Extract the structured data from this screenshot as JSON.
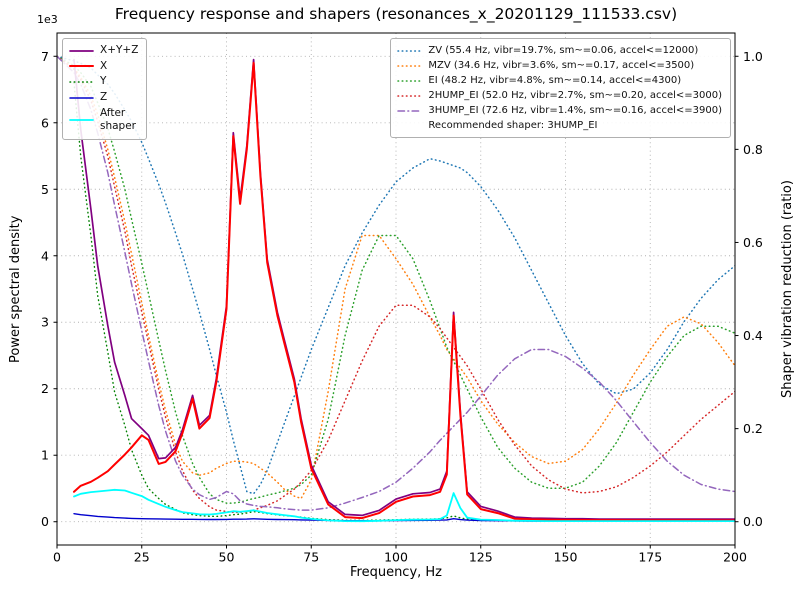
{
  "chart_data": {
    "type": "line",
    "title": "Frequency response and shapers (resonances_x_20201129_111533.csv)",
    "xlabel": "Frequency, Hz",
    "ylabel_left": "Power spectral density",
    "ylabel_right": "Shaper vibration reduction (ratio)",
    "y_left_offset": "1e3",
    "recommended_shaper": "3HUMP_EI",
    "grid": true,
    "xlim": [
      0,
      200
    ],
    "ylim_left": [
      -350,
      7350
    ],
    "ylim_right": [
      -0.05,
      1.05
    ],
    "xticks": [
      0,
      25,
      50,
      75,
      100,
      125,
      150,
      175,
      200
    ],
    "yticks_left": [
      0,
      1,
      2,
      3,
      4,
      5,
      6,
      7
    ],
    "yticks_left_scale": 1000,
    "yticks_right": [
      "0.0",
      "0.2",
      "0.4",
      "0.6",
      "0.8",
      "1.0"
    ],
    "x": [
      0,
      5,
      7,
      10,
      12,
      15,
      17,
      20,
      22,
      25,
      27,
      30,
      32,
      35,
      37,
      40,
      42,
      45,
      47,
      50,
      52,
      54,
      56,
      58,
      60,
      62,
      65,
      67,
      70,
      72,
      75,
      80,
      85,
      90,
      95,
      100,
      105,
      110,
      113,
      115,
      117,
      119,
      121,
      125,
      130,
      135,
      140,
      145,
      150,
      155,
      160,
      165,
      170,
      175,
      180,
      185,
      190,
      195,
      200
    ],
    "series": [
      {
        "key": "shaper-zv",
        "label": "ZV (55.4 Hz, vibr=19.7%, sm~=0.06, accel<=12000)",
        "axis": "right",
        "color": "#1f77b4",
        "style": "dotted",
        "width": 1.5,
        "values": [
          1.0,
          0.99,
          0.985,
          0.975,
          0.96,
          0.94,
          0.92,
          0.885,
          0.86,
          0.815,
          0.78,
          0.725,
          0.685,
          0.62,
          0.575,
          0.5,
          0.45,
          0.37,
          0.315,
          0.235,
          0.175,
          0.12,
          0.065,
          0.06,
          0.08,
          0.11,
          0.17,
          0.21,
          0.27,
          0.31,
          0.37,
          0.46,
          0.55,
          0.62,
          0.68,
          0.73,
          0.76,
          0.78,
          0.775,
          0.77,
          0.765,
          0.76,
          0.75,
          0.72,
          0.67,
          0.61,
          0.54,
          0.47,
          0.4,
          0.34,
          0.295,
          0.275,
          0.285,
          0.32,
          0.37,
          0.43,
          0.48,
          0.52,
          0.55
        ]
      },
      {
        "key": "shaper-mzv",
        "label": "MZV (34.6 Hz, vibr=3.6%, sm~=0.17, accel<=3500)",
        "axis": "right",
        "color": "#ff7f0e",
        "style": "dotted",
        "width": 1.5,
        "values": [
          1.0,
          0.975,
          0.955,
          0.915,
          0.875,
          0.8,
          0.74,
          0.645,
          0.575,
          0.47,
          0.4,
          0.3,
          0.24,
          0.165,
          0.13,
          0.105,
          0.1,
          0.105,
          0.115,
          0.125,
          0.13,
          0.13,
          0.128,
          0.125,
          0.115,
          0.105,
          0.085,
          0.07,
          0.055,
          0.05,
          0.09,
          0.28,
          0.5,
          0.615,
          0.615,
          0.565,
          0.51,
          0.44,
          0.4,
          0.37,
          0.35,
          0.33,
          0.31,
          0.26,
          0.21,
          0.17,
          0.14,
          0.125,
          0.13,
          0.155,
          0.2,
          0.255,
          0.315,
          0.37,
          0.42,
          0.44,
          0.425,
          0.385,
          0.335
        ]
      },
      {
        "key": "shaper-ei",
        "label": "EI (48.2 Hz, vibr=4.8%, sm~=0.14, accel<=4300)",
        "axis": "right",
        "color": "#2ca02c",
        "style": "dotted",
        "width": 1.5,
        "values": [
          1.0,
          0.98,
          0.965,
          0.935,
          0.9,
          0.845,
          0.795,
          0.715,
          0.65,
          0.555,
          0.49,
          0.39,
          0.325,
          0.235,
          0.185,
          0.125,
          0.095,
          0.06,
          0.048,
          0.04,
          0.04,
          0.042,
          0.046,
          0.05,
          0.053,
          0.057,
          0.062,
          0.066,
          0.072,
          0.08,
          0.1,
          0.22,
          0.4,
          0.54,
          0.615,
          0.615,
          0.565,
          0.475,
          0.415,
          0.375,
          0.345,
          0.315,
          0.285,
          0.225,
          0.16,
          0.115,
          0.085,
          0.072,
          0.072,
          0.085,
          0.12,
          0.17,
          0.235,
          0.3,
          0.355,
          0.4,
          0.42,
          0.42,
          0.405
        ]
      },
      {
        "key": "shaper-2hump-ei",
        "label": "2HUMP_EI (52.0 Hz, vibr=2.7%, sm~=0.20, accel<=3000)",
        "axis": "right",
        "color": "#d62728",
        "style": "dotted",
        "width": 1.5,
        "values": [
          1.0,
          0.972,
          0.95,
          0.905,
          0.86,
          0.785,
          0.72,
          0.625,
          0.55,
          0.45,
          0.385,
          0.285,
          0.225,
          0.15,
          0.11,
          0.068,
          0.05,
          0.032,
          0.025,
          0.022,
          0.02,
          0.02,
          0.022,
          0.025,
          0.03,
          0.035,
          0.045,
          0.055,
          0.07,
          0.085,
          0.11,
          0.175,
          0.26,
          0.345,
          0.42,
          0.465,
          0.465,
          0.44,
          0.415,
          0.395,
          0.375,
          0.355,
          0.335,
          0.285,
          0.22,
          0.165,
          0.12,
          0.09,
          0.07,
          0.062,
          0.065,
          0.075,
          0.095,
          0.12,
          0.15,
          0.185,
          0.22,
          0.25,
          0.28
        ]
      },
      {
        "key": "shaper-3hump-ei",
        "label": "3HUMP_EI (72.6 Hz, vibr=1.4%, sm~=0.16, accel<=3900)",
        "axis": "right",
        "color": "#9467bd",
        "style": "dashdot",
        "width": 1.5,
        "values": [
          1.0,
          0.965,
          0.94,
          0.885,
          0.835,
          0.75,
          0.68,
          0.58,
          0.51,
          0.41,
          0.345,
          0.25,
          0.195,
          0.13,
          0.1,
          0.07,
          0.058,
          0.048,
          0.052,
          0.065,
          0.06,
          0.045,
          0.038,
          0.035,
          0.033,
          0.032,
          0.03,
          0.028,
          0.026,
          0.025,
          0.025,
          0.03,
          0.04,
          0.052,
          0.065,
          0.085,
          0.115,
          0.15,
          0.175,
          0.19,
          0.205,
          0.22,
          0.235,
          0.27,
          0.315,
          0.35,
          0.37,
          0.37,
          0.355,
          0.33,
          0.3,
          0.26,
          0.215,
          0.17,
          0.13,
          0.1,
          0.08,
          0.07,
          0.065
        ]
      },
      {
        "key": "psd-xyz",
        "label": "X+Y+Z",
        "axis": "left",
        "color": "#800080",
        "style": "solid",
        "width": 1.7,
        "values": [
          null,
          6950,
          5900,
          4700,
          3850,
          2950,
          2400,
          1900,
          1550,
          1400,
          1300,
          950,
          960,
          1120,
          1380,
          1900,
          1450,
          1600,
          2150,
          3250,
          5850,
          4850,
          5650,
          6950,
          5250,
          3950,
          3150,
          2750,
          2150,
          1550,
          850,
          300,
          110,
          95,
          170,
          340,
          420,
          440,
          490,
          760,
          3150,
          1650,
          450,
          230,
          160,
          70,
          55,
          50,
          45,
          45,
          40,
          40,
          40,
          40,
          40,
          40,
          40,
          40,
          40
        ]
      },
      {
        "key": "psd-y",
        "label": "Y",
        "axis": "left",
        "color": "#008000",
        "style": "dotted",
        "width": 1.4,
        "values": [
          null,
          6600,
          5500,
          4300,
          3400,
          2550,
          1950,
          1450,
          1080,
          700,
          500,
          350,
          260,
          185,
          135,
          105,
          92,
          82,
          80,
          92,
          105,
          115,
          132,
          152,
          140,
          122,
          102,
          92,
          80,
          70,
          52,
          32,
          22,
          20,
          24,
          30,
          36,
          40,
          44,
          58,
          88,
          58,
          40,
          26,
          20,
          14,
          12,
          11,
          10,
          10,
          10,
          10,
          10,
          10,
          10,
          10,
          10,
          10,
          10
        ]
      },
      {
        "key": "psd-z",
        "label": "Z",
        "axis": "left",
        "color": "#0000cd",
        "style": "solid",
        "width": 1.4,
        "values": [
          null,
          120,
          105,
          90,
          80,
          70,
          62,
          55,
          50,
          46,
          44,
          42,
          40,
          38,
          37,
          36,
          35,
          34,
          34,
          35,
          38,
          38,
          40,
          44,
          40,
          37,
          34,
          32,
          30,
          28,
          25,
          20,
          16,
          15,
          16,
          18,
          20,
          22,
          24,
          28,
          45,
          32,
          24,
          18,
          15,
          12,
          11,
          10,
          10,
          10,
          10,
          10,
          10,
          10,
          10,
          10,
          10,
          10,
          10
        ]
      },
      {
        "key": "psd-x",
        "label": "X",
        "axis": "left",
        "color": "#ff0000",
        "style": "solid",
        "width": 2,
        "values": [
          null,
          450,
          540,
          600,
          660,
          760,
          860,
          1010,
          1120,
          1300,
          1230,
          870,
          900,
          1060,
          1330,
          1850,
          1400,
          1560,
          2100,
          3200,
          5800,
          4780,
          5600,
          6900,
          5200,
          3900,
          3100,
          2700,
          2100,
          1500,
          800,
          260,
          70,
          55,
          130,
          300,
          380,
          400,
          450,
          710,
          3100,
          1600,
          410,
          190,
          130,
          45,
          35,
          30,
          28,
          26,
          25,
          24,
          23,
          22,
          22,
          21,
          21,
          20,
          20
        ]
      },
      {
        "key": "psd-after-shaper",
        "label": "After\nshaper",
        "axis": "left",
        "color": "#00ffff",
        "style": "solid",
        "width": 1.8,
        "values": [
          null,
          380,
          420,
          445,
          455,
          470,
          480,
          470,
          435,
          385,
          330,
          265,
          225,
          175,
          145,
          125,
          112,
          108,
          118,
          140,
          158,
          150,
          160,
          172,
          152,
          132,
          112,
          100,
          82,
          62,
          42,
          20,
          10,
          8,
          14,
          24,
          30,
          34,
          40,
          92,
          430,
          205,
          60,
          32,
          26,
          16,
          12,
          10,
          10,
          10,
          10,
          10,
          10,
          10,
          10,
          10,
          10,
          10,
          10
        ]
      }
    ]
  },
  "legends": {
    "psd": {
      "entries": [
        "psd-xyz",
        "psd-x",
        "psd-y",
        "psd-z",
        "psd-after-shaper"
      ]
    },
    "shapers": {
      "entries": [
        "shaper-zv",
        "shaper-mzv",
        "shaper-ei",
        "shaper-2hump-ei",
        "shaper-3hump-ei"
      ],
      "note": "Recommended shaper: 3HUMP_EI"
    }
  }
}
